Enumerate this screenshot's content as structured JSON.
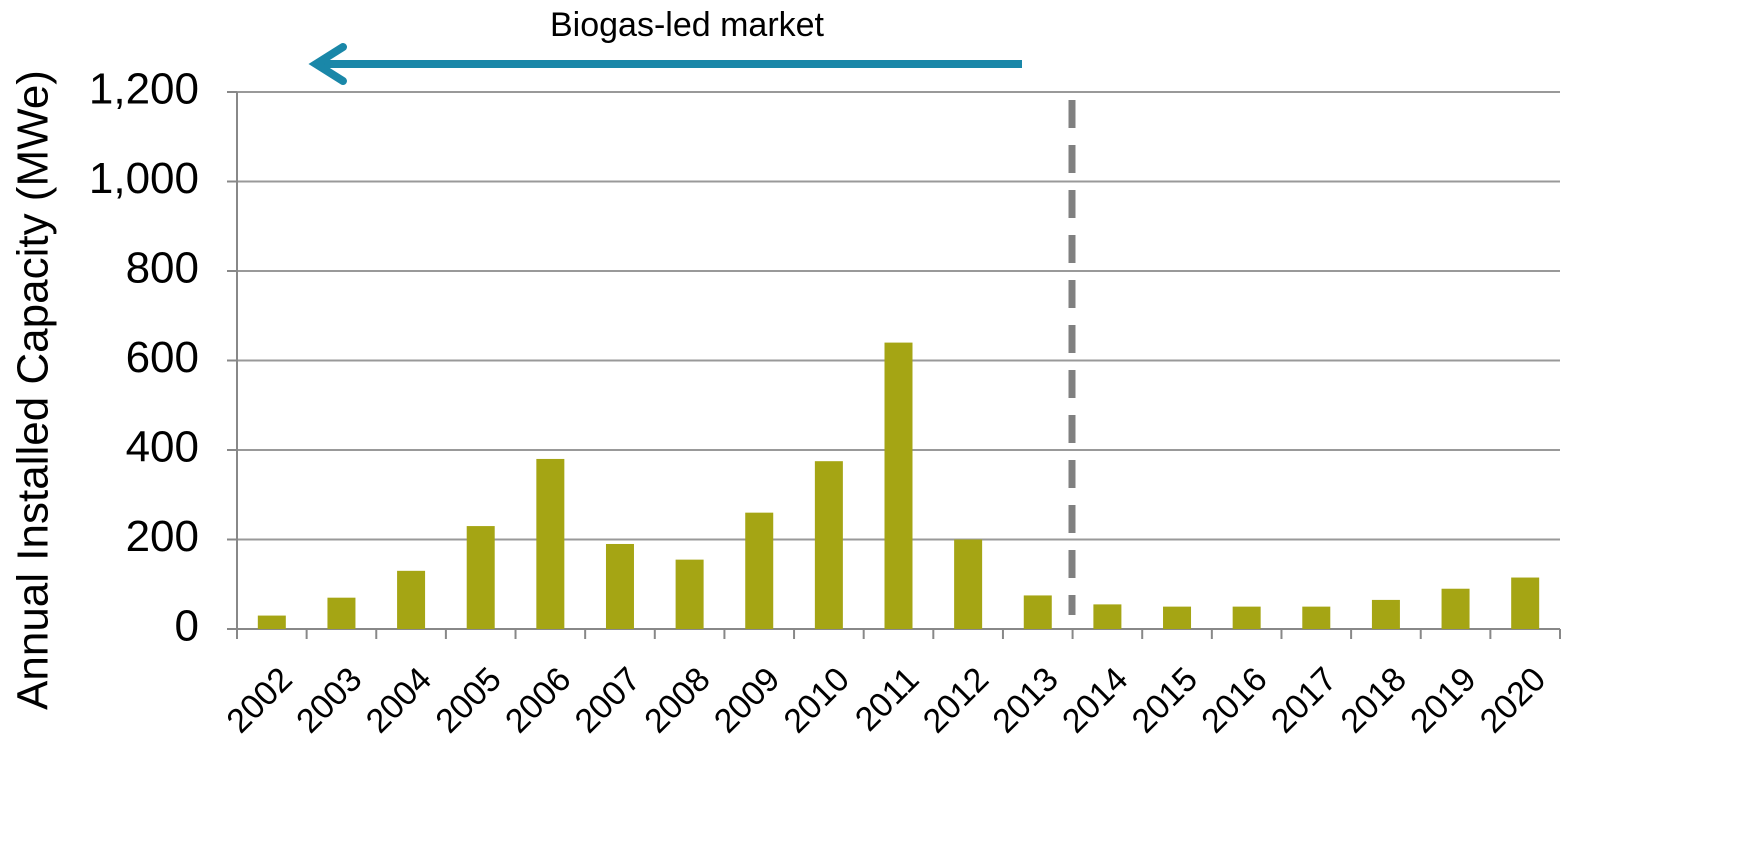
{
  "chart_data": {
    "type": "bar",
    "annotation": "Biogas-led market",
    "y_label": "Annual Installed Capacity  (MWe)",
    "categories": [
      "2002",
      "2003",
      "2004",
      "2005",
      "2006",
      "2007",
      "2008",
      "2009",
      "2010",
      "2011",
      "2012",
      "2013",
      "2014",
      "2015",
      "2016",
      "2017",
      "2018",
      "2019",
      "2020"
    ],
    "values": [
      30,
      70,
      130,
      230,
      380,
      190,
      155,
      260,
      375,
      640,
      200,
      75,
      55,
      50,
      50,
      50,
      65,
      90,
      115
    ],
    "color": "#a5a514",
    "ylim": [
      0,
      1200
    ],
    "yticks": [
      0,
      200,
      400,
      600,
      800,
      {
        "value": 1000,
        "label": "1,000"
      },
      {
        "value": 1200,
        "label": "1,200"
      }
    ],
    "grid": true
  }
}
